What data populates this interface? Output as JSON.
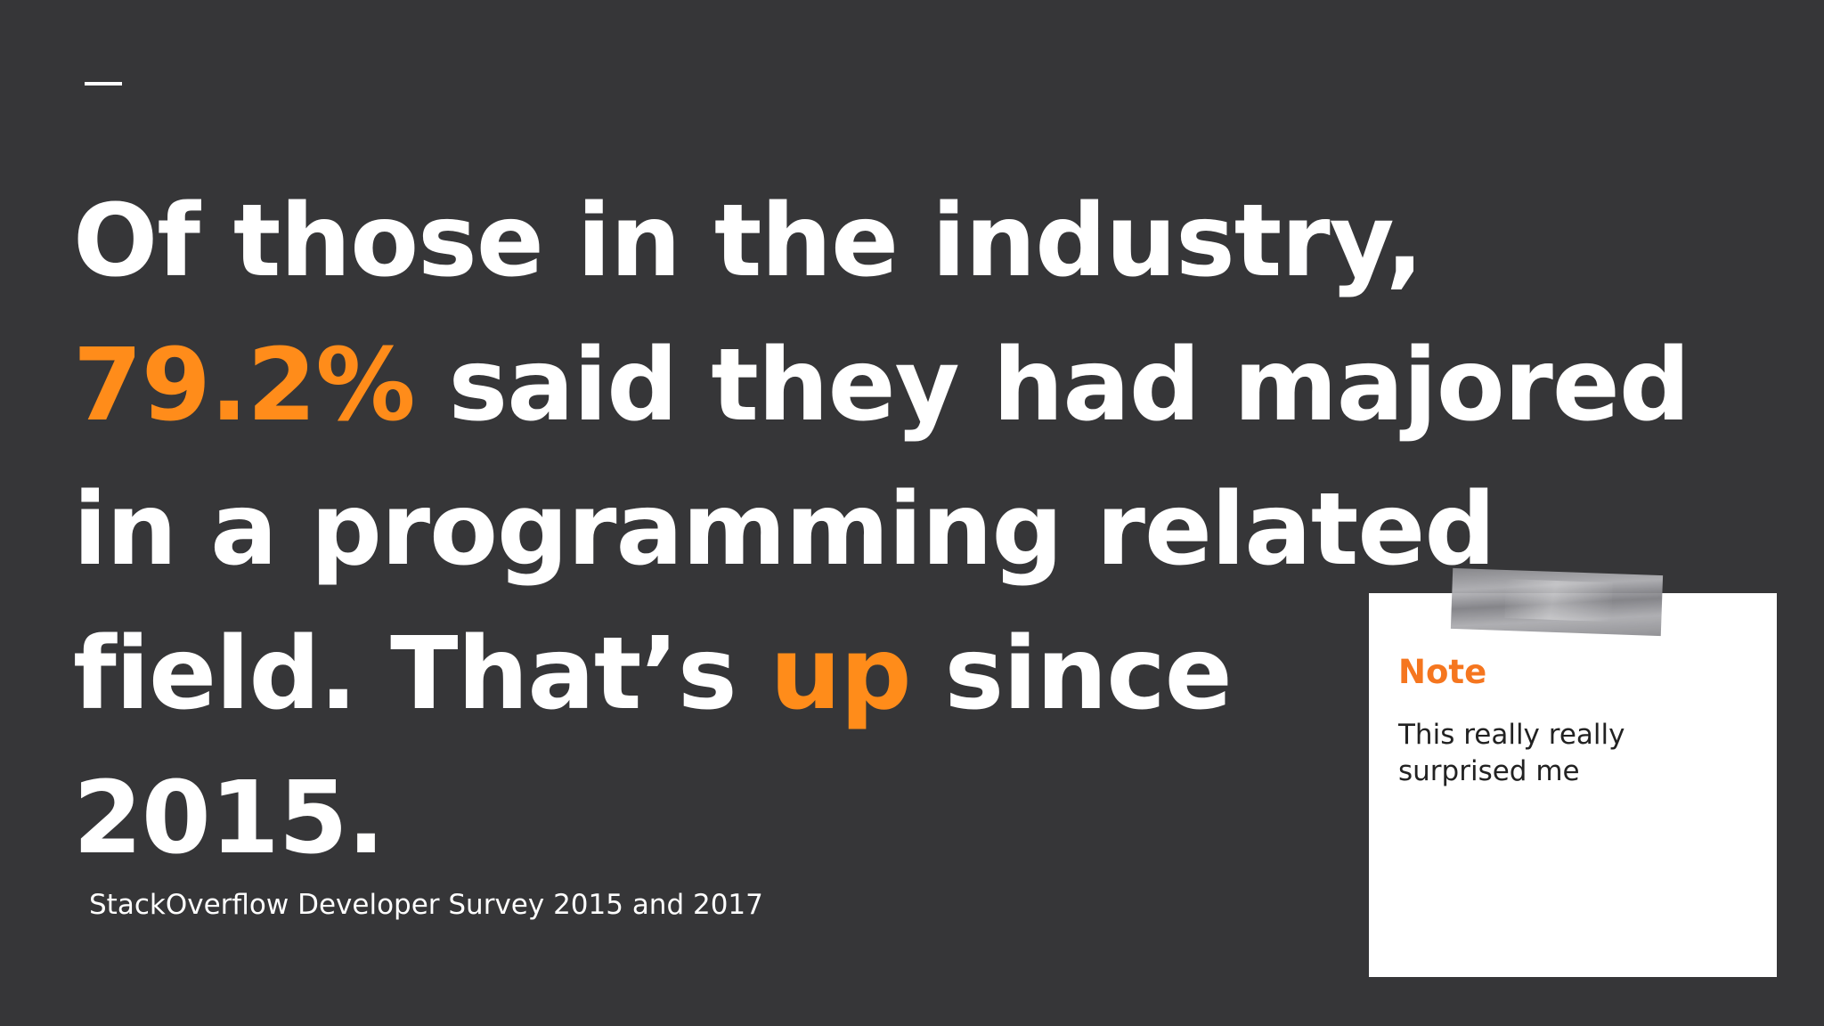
{
  "headline": {
    "line1": "Of those in the industry,",
    "line2_accent": "79.2%",
    "line2_rest": " said they had majored",
    "line3": "in a programming related",
    "line4_start": "field. That’s ",
    "line4_accent": "up",
    "line4_end": " since",
    "line5": "2015."
  },
  "source": "StackOverflow Developer Survey 2015 and 2017",
  "note": {
    "title": "Note",
    "body": "This really really surprised me"
  },
  "colors": {
    "background": "#363638",
    "accent": "#ff8c1a",
    "note_title": "#f5761f",
    "text": "#ffffff"
  }
}
